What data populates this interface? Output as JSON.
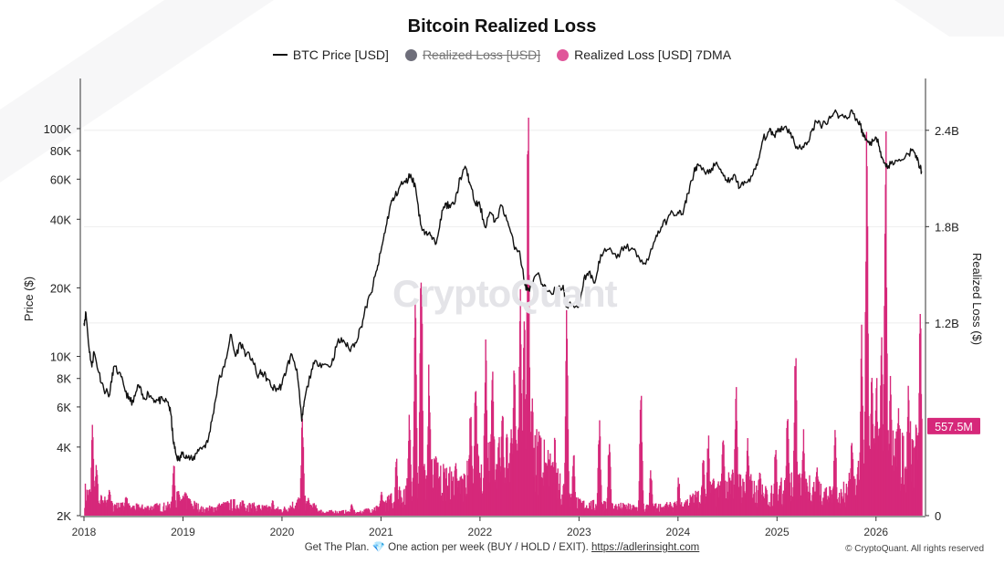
{
  "title": "Bitcoin Realized Loss",
  "legend": [
    {
      "label": "BTC Price [USD]",
      "kind": "line",
      "color": "#111111",
      "hidden": false
    },
    {
      "label": "Realized Loss [USD]",
      "kind": "dot",
      "color": "#6e6e7a",
      "hidden": true
    },
    {
      "label": "Realized Loss [USD] 7DMA",
      "kind": "dot",
      "color": "#e0569a",
      "hidden": false
    }
  ],
  "watermark": "CryptoQuant",
  "footer": {
    "text": "Get The Plan. 💎 One action per week (BUY / HOLD / EXIT).",
    "link": "https://adlerinsight.com"
  },
  "copyright": "© CryptoQuant. All rights reserved",
  "colors": {
    "price": "#111111",
    "loss": "#d6287a",
    "badge": "#d6287a"
  },
  "chart_data": {
    "type": "line",
    "title": "Bitcoin Realized Loss",
    "left_axis": {
      "label": "Price ($)",
      "scale": "log",
      "range": [
        2000,
        160000
      ],
      "ticks": [
        {
          "v": 2000,
          "t": "2K"
        },
        {
          "v": 4000,
          "t": "4K"
        },
        {
          "v": 6000,
          "t": "6K"
        },
        {
          "v": 8000,
          "t": "8K"
        },
        {
          "v": 10000,
          "t": "10K"
        },
        {
          "v": 20000,
          "t": "20K"
        },
        {
          "v": 40000,
          "t": "40K"
        },
        {
          "v": 60000,
          "t": "60K"
        },
        {
          "v": 80000,
          "t": "80K"
        },
        {
          "v": 100000,
          "t": "100K"
        }
      ]
    },
    "right_axis": {
      "label": "Realized Loss ($)",
      "scale": "linear",
      "range": [
        0,
        2.7
      ],
      "ticks": [
        {
          "v": 0,
          "t": "0"
        },
        {
          "v": 1.2,
          "t": "1.2B"
        },
        {
          "v": 1.8,
          "t": "1.8B"
        },
        {
          "v": 2.4,
          "t": "2.4B"
        }
      ]
    },
    "x_axis": {
      "range": [
        2018.0,
        2026.5
      ],
      "ticks": [
        "2018",
        "2019",
        "2020",
        "2021",
        "2022",
        "2023",
        "2024",
        "2025",
        "2026"
      ]
    },
    "current_value_label": "557.5M",
    "current_value": 0.5575,
    "series": [
      {
        "name": "BTC Price [USD]",
        "axis": "left",
        "points": [
          [
            2018.0,
            14000
          ],
          [
            2018.02,
            15500
          ],
          [
            2018.05,
            11000
          ],
          [
            2018.08,
            9000
          ],
          [
            2018.1,
            10500
          ],
          [
            2018.15,
            8500
          ],
          [
            2018.2,
            7200
          ],
          [
            2018.26,
            6800
          ],
          [
            2018.3,
            9000
          ],
          [
            2018.35,
            8500
          ],
          [
            2018.4,
            7500
          ],
          [
            2018.45,
            6500
          ],
          [
            2018.5,
            6300
          ],
          [
            2018.55,
            7500
          ],
          [
            2018.6,
            6500
          ],
          [
            2018.65,
            6900
          ],
          [
            2018.7,
            6500
          ],
          [
            2018.75,
            6400
          ],
          [
            2018.8,
            6400
          ],
          [
            2018.85,
            6300
          ],
          [
            2018.88,
            5500
          ],
          [
            2018.9,
            4300
          ],
          [
            2018.93,
            3700
          ],
          [
            2018.96,
            3500
          ],
          [
            2019.0,
            3800
          ],
          [
            2019.05,
            3600
          ],
          [
            2019.1,
            3500
          ],
          [
            2019.15,
            3900
          ],
          [
            2019.2,
            4000
          ],
          [
            2019.25,
            4200
          ],
          [
            2019.3,
            5500
          ],
          [
            2019.36,
            7800
          ],
          [
            2019.42,
            9000
          ],
          [
            2019.48,
            12500
          ],
          [
            2019.53,
            10000
          ],
          [
            2019.58,
            11500
          ],
          [
            2019.64,
            10200
          ],
          [
            2019.7,
            9800
          ],
          [
            2019.75,
            8200
          ],
          [
            2019.8,
            8500
          ],
          [
            2019.85,
            8000
          ],
          [
            2019.9,
            7300
          ],
          [
            2019.96,
            7200
          ],
          [
            2020.0,
            7500
          ],
          [
            2020.05,
            9000
          ],
          [
            2020.1,
            10200
          ],
          [
            2020.15,
            8800
          ],
          [
            2020.2,
            5200
          ],
          [
            2020.23,
            6500
          ],
          [
            2020.3,
            8800
          ],
          [
            2020.35,
            9500
          ],
          [
            2020.42,
            9200
          ],
          [
            2020.5,
            9200
          ],
          [
            2020.56,
            11500
          ],
          [
            2020.62,
            11800
          ],
          [
            2020.68,
            10700
          ],
          [
            2020.74,
            11500
          ],
          [
            2020.8,
            13500
          ],
          [
            2020.85,
            16500
          ],
          [
            2020.9,
            19000
          ],
          [
            2020.96,
            24000
          ],
          [
            2021.0,
            29000
          ],
          [
            2021.05,
            37000
          ],
          [
            2021.1,
            47000
          ],
          [
            2021.14,
            50000
          ],
          [
            2021.2,
            57000
          ],
          [
            2021.25,
            58000
          ],
          [
            2021.3,
            63000
          ],
          [
            2021.35,
            55000
          ],
          [
            2021.4,
            38000
          ],
          [
            2021.45,
            35000
          ],
          [
            2021.5,
            34000
          ],
          [
            2021.55,
            31000
          ],
          [
            2021.6,
            40000
          ],
          [
            2021.65,
            47000
          ],
          [
            2021.7,
            45000
          ],
          [
            2021.75,
            48000
          ],
          [
            2021.8,
            61000
          ],
          [
            2021.86,
            67000
          ],
          [
            2021.9,
            57000
          ],
          [
            2021.95,
            47000
          ],
          [
            2022.0,
            46000
          ],
          [
            2022.05,
            37000
          ],
          [
            2022.1,
            43000
          ],
          [
            2022.15,
            39000
          ],
          [
            2022.22,
            46000
          ],
          [
            2022.28,
            39000
          ],
          [
            2022.34,
            31000
          ],
          [
            2022.4,
            29000
          ],
          [
            2022.45,
            21000
          ],
          [
            2022.48,
            19500
          ],
          [
            2022.52,
            20500
          ],
          [
            2022.58,
            23000
          ],
          [
            2022.64,
            20000
          ],
          [
            2022.7,
            19500
          ],
          [
            2022.78,
            19400
          ],
          [
            2022.84,
            20500
          ],
          [
            2022.87,
            16500
          ],
          [
            2022.93,
            16800
          ],
          [
            2023.0,
            16600
          ],
          [
            2023.05,
            22000
          ],
          [
            2023.1,
            23500
          ],
          [
            2023.16,
            21000
          ],
          [
            2023.22,
            28000
          ],
          [
            2023.3,
            29500
          ],
          [
            2023.38,
            27000
          ],
          [
            2023.46,
            30500
          ],
          [
            2023.55,
            29500
          ],
          [
            2023.62,
            26000
          ],
          [
            2023.7,
            26500
          ],
          [
            2023.78,
            34000
          ],
          [
            2023.84,
            37000
          ],
          [
            2023.92,
            42000
          ],
          [
            2024.0,
            43000
          ],
          [
            2024.05,
            42000
          ],
          [
            2024.1,
            52000
          ],
          [
            2024.16,
            64000
          ],
          [
            2024.2,
            70000
          ],
          [
            2024.28,
            63000
          ],
          [
            2024.34,
            67000
          ],
          [
            2024.4,
            69000
          ],
          [
            2024.46,
            62000
          ],
          [
            2024.52,
            58000
          ],
          [
            2024.58,
            62000
          ],
          [
            2024.62,
            55000
          ],
          [
            2024.68,
            58000
          ],
          [
            2024.75,
            62000
          ],
          [
            2024.8,
            69000
          ],
          [
            2024.86,
            90000
          ],
          [
            2024.92,
            97000
          ],
          [
            2024.97,
            94000
          ],
          [
            2025.03,
            100000
          ],
          [
            2025.08,
            102000
          ],
          [
            2025.14,
            96000
          ],
          [
            2025.18,
            85000
          ],
          [
            2025.24,
            82000
          ],
          [
            2025.3,
            85000
          ],
          [
            2025.36,
            100000
          ],
          [
            2025.4,
            107000
          ],
          [
            2025.46,
            104000
          ],
          [
            2025.52,
            110000
          ],
          [
            2025.58,
            118000
          ],
          [
            2025.64,
            114000
          ],
          [
            2025.7,
            112000
          ],
          [
            2025.76,
            120000
          ],
          [
            2025.8,
            110000
          ],
          [
            2025.84,
            104000
          ],
          [
            2025.88,
            92000
          ],
          [
            2025.92,
            87000
          ],
          [
            2025.97,
            88000
          ],
          [
            2026.02,
            90000
          ],
          [
            2026.06,
            75000
          ],
          [
            2026.1,
            68000
          ],
          [
            2026.15,
            70000
          ],
          [
            2026.22,
            72000
          ],
          [
            2026.3,
            76000
          ],
          [
            2026.36,
            80000
          ],
          [
            2026.41,
            76000
          ],
          [
            2026.44,
            68000
          ],
          [
            2026.46,
            65000
          ]
        ]
      },
      {
        "name": "Realized Loss [USD] 7DMA",
        "axis": "right",
        "unit": "B USD",
        "baseline": [
          [
            2018.0,
            0.12
          ],
          [
            2018.15,
            0.08
          ],
          [
            2018.3,
            0.05
          ],
          [
            2018.6,
            0.04
          ],
          [
            2018.88,
            0.05
          ],
          [
            2018.95,
            0.1
          ],
          [
            2019.2,
            0.03
          ],
          [
            2019.5,
            0.06
          ],
          [
            2019.8,
            0.04
          ],
          [
            2020.0,
            0.03
          ],
          [
            2020.2,
            0.08
          ],
          [
            2020.4,
            0.02
          ],
          [
            2020.8,
            0.02
          ],
          [
            2021.0,
            0.05
          ],
          [
            2021.3,
            0.15
          ],
          [
            2021.5,
            0.22
          ],
          [
            2021.8,
            0.15
          ],
          [
            2022.0,
            0.28
          ],
          [
            2022.3,
            0.3
          ],
          [
            2022.5,
            0.38
          ],
          [
            2022.8,
            0.15
          ],
          [
            2023.0,
            0.06
          ],
          [
            2023.3,
            0.05
          ],
          [
            2023.6,
            0.04
          ],
          [
            2024.0,
            0.05
          ],
          [
            2024.3,
            0.12
          ],
          [
            2024.6,
            0.18
          ],
          [
            2024.9,
            0.1
          ],
          [
            2025.1,
            0.15
          ],
          [
            2025.3,
            0.18
          ],
          [
            2025.6,
            0.08
          ],
          [
            2025.85,
            0.22
          ],
          [
            2026.0,
            0.35
          ],
          [
            2026.2,
            0.3
          ],
          [
            2026.46,
            0.35
          ]
        ],
        "spikes": [
          [
            2018.08,
            0.58
          ],
          [
            2018.12,
            0.38
          ],
          [
            2018.25,
            0.2
          ],
          [
            2018.42,
            0.15
          ],
          [
            2018.9,
            0.35
          ],
          [
            2019.05,
            0.12
          ],
          [
            2019.6,
            0.1
          ],
          [
            2019.9,
            0.1
          ],
          [
            2020.2,
            0.65
          ],
          [
            2020.7,
            0.08
          ],
          [
            2021.0,
            0.15
          ],
          [
            2021.15,
            0.4
          ],
          [
            2021.28,
            0.72
          ],
          [
            2021.34,
            1.4
          ],
          [
            2021.4,
            1.92
          ],
          [
            2021.48,
            1.0
          ],
          [
            2021.55,
            0.42
          ],
          [
            2021.75,
            0.35
          ],
          [
            2021.9,
            0.75
          ],
          [
            2021.95,
            0.9
          ],
          [
            2022.05,
            1.15
          ],
          [
            2022.12,
            1.05
          ],
          [
            2022.22,
            0.72
          ],
          [
            2022.34,
            1.0
          ],
          [
            2022.4,
            1.5
          ],
          [
            2022.44,
            1.35
          ],
          [
            2022.48,
            2.73
          ],
          [
            2022.52,
            0.8
          ],
          [
            2022.6,
            0.55
          ],
          [
            2022.75,
            0.5
          ],
          [
            2022.87,
            1.4
          ],
          [
            2022.94,
            0.42
          ],
          [
            2023.2,
            0.65
          ],
          [
            2023.3,
            0.55
          ],
          [
            2023.62,
            0.8
          ],
          [
            2023.72,
            0.3
          ],
          [
            2024.0,
            0.25
          ],
          [
            2024.25,
            0.4
          ],
          [
            2024.3,
            0.55
          ],
          [
            2024.45,
            0.55
          ],
          [
            2024.58,
            0.85
          ],
          [
            2024.7,
            0.5
          ],
          [
            2024.82,
            0.35
          ],
          [
            2024.98,
            0.5
          ],
          [
            2025.1,
            0.7
          ],
          [
            2025.18,
            1.1
          ],
          [
            2025.26,
            0.55
          ],
          [
            2025.4,
            0.35
          ],
          [
            2025.58,
            0.6
          ],
          [
            2025.75,
            0.55
          ],
          [
            2025.85,
            1.2
          ],
          [
            2025.9,
            2.45
          ],
          [
            2025.95,
            1.0
          ],
          [
            2026.0,
            0.9
          ],
          [
            2026.05,
            1.25
          ],
          [
            2026.09,
            2.63
          ],
          [
            2026.14,
            0.95
          ],
          [
            2026.22,
            0.8
          ],
          [
            2026.32,
            0.9
          ],
          [
            2026.4,
            0.6
          ],
          [
            2026.44,
            1.42
          ]
        ]
      }
    ]
  }
}
